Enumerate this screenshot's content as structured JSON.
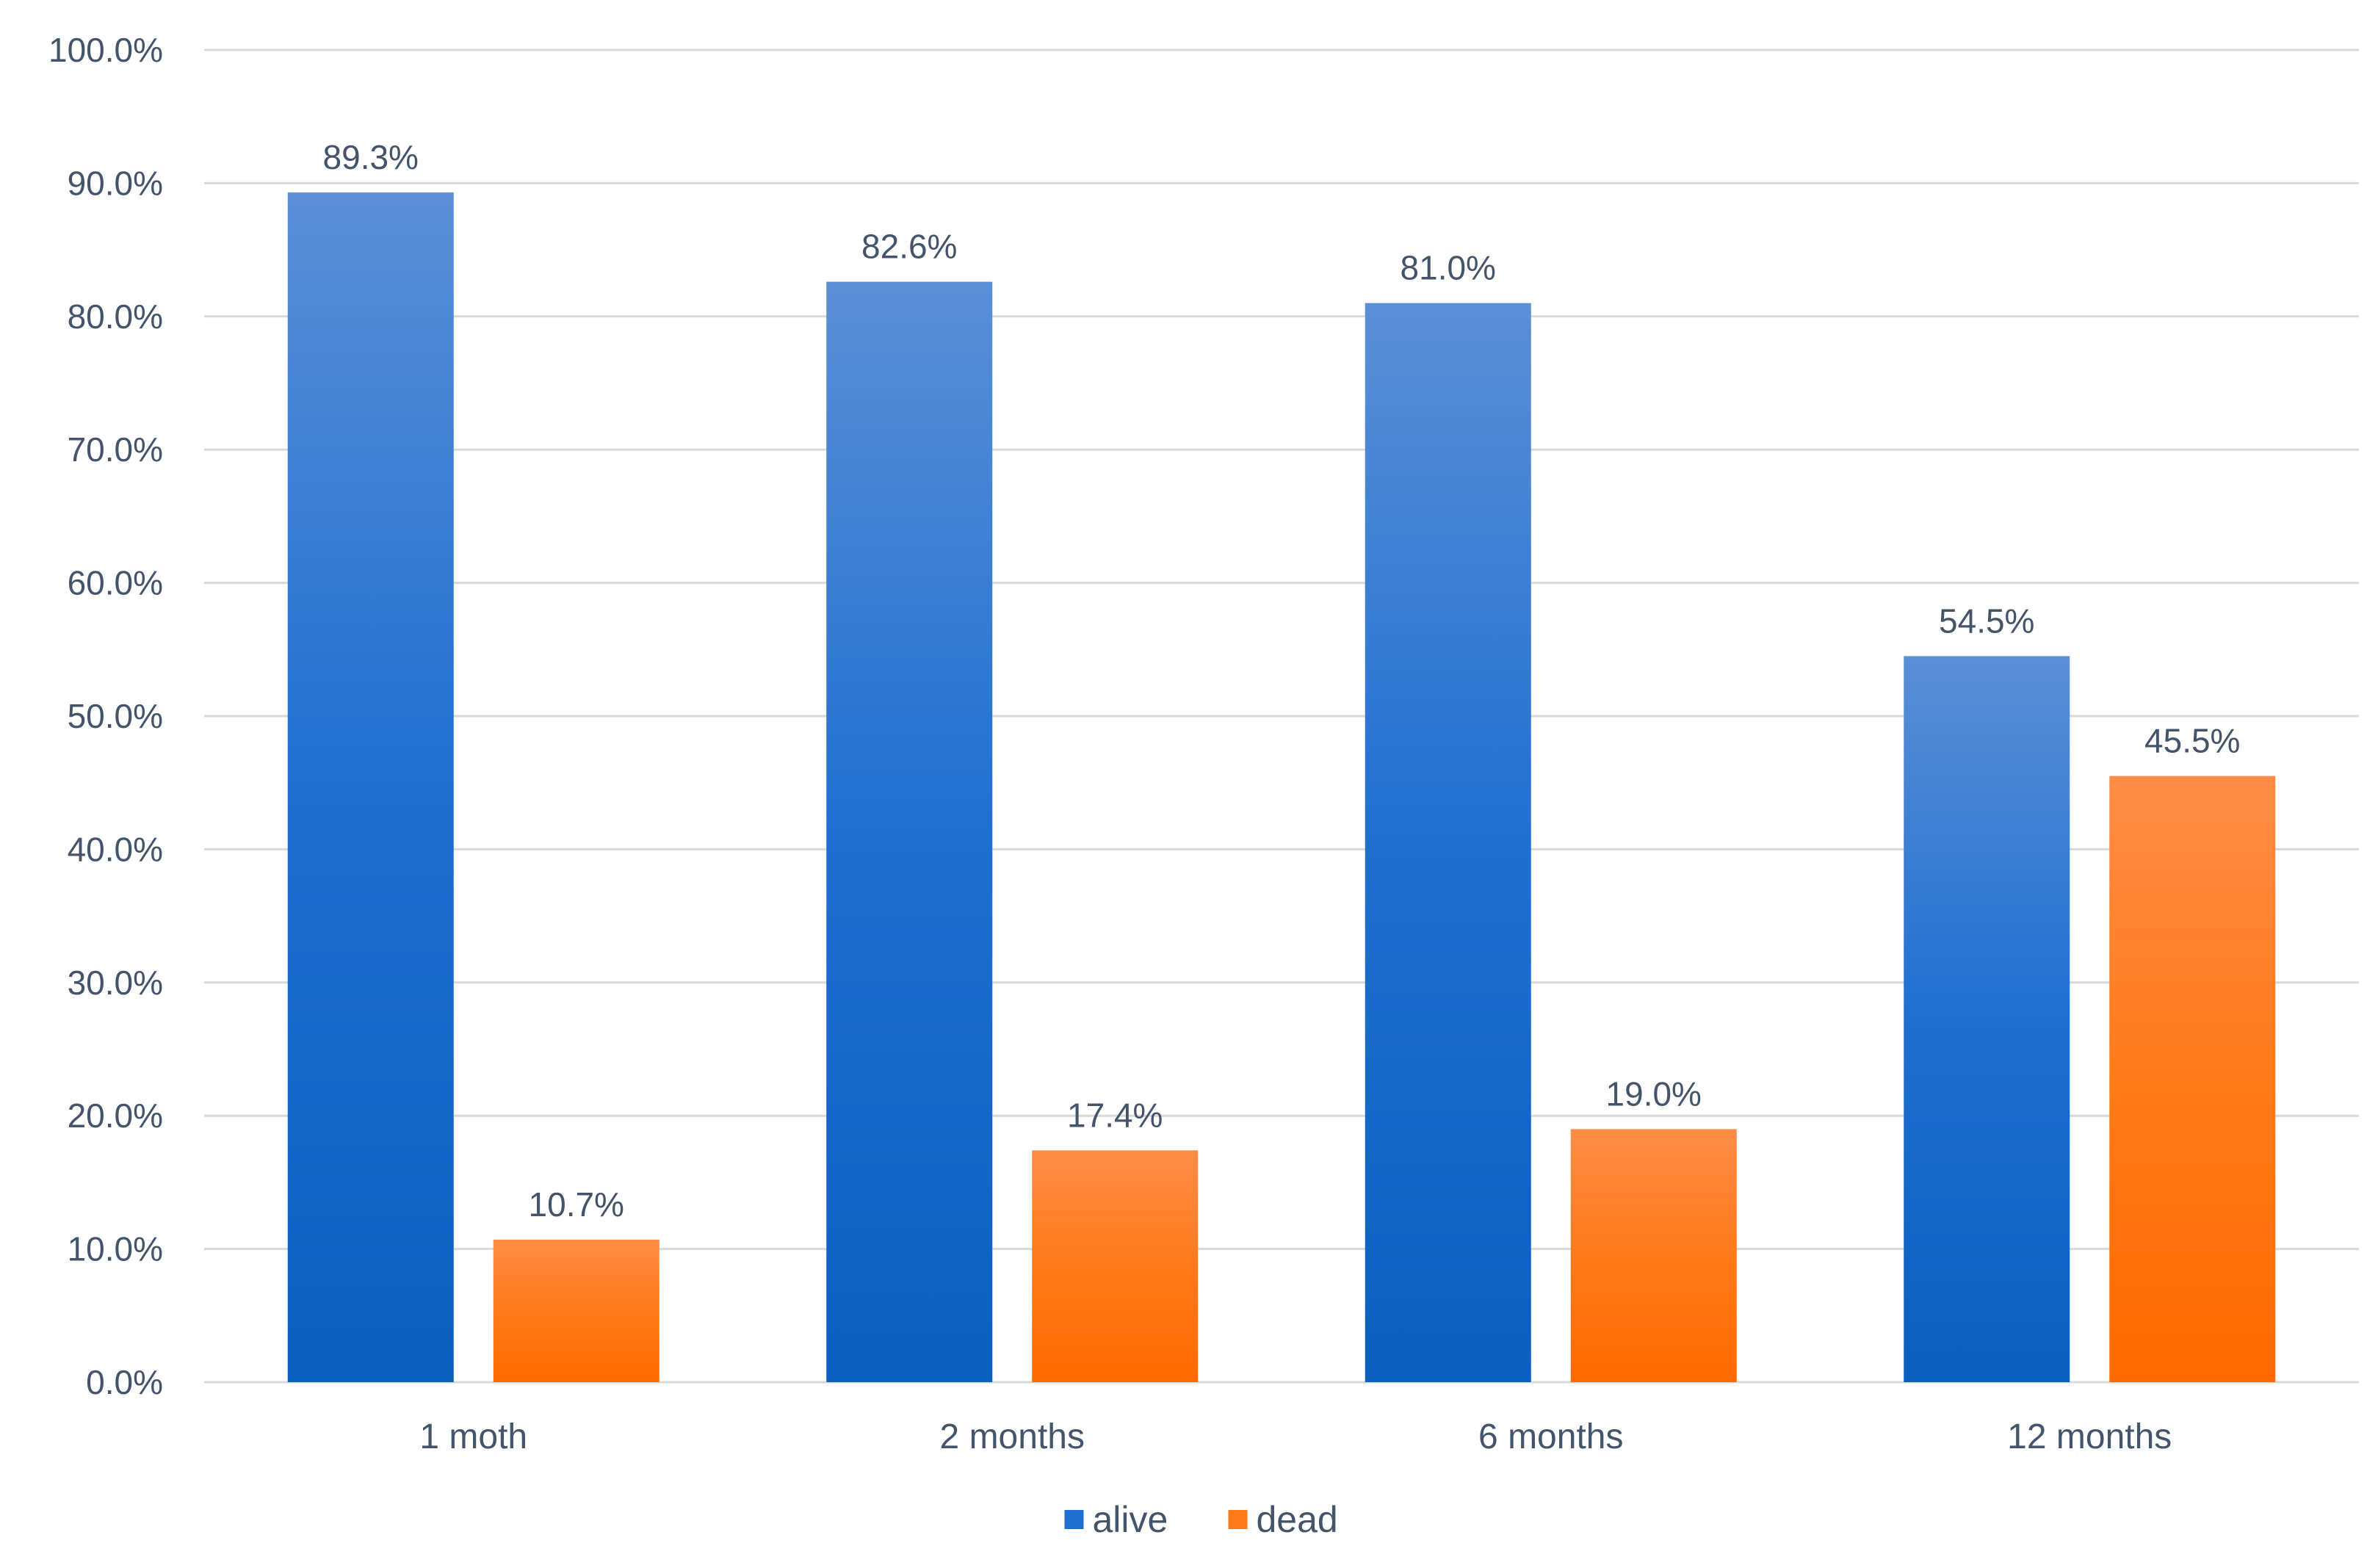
{
  "chart_data": {
    "type": "bar",
    "title": "",
    "xlabel": "",
    "ylabel": "",
    "categories": [
      "1 moth",
      "2 months",
      "6 months",
      "12 months"
    ],
    "series": [
      {
        "name": "alive",
        "values": [
          89.3,
          82.6,
          81.0,
          54.5
        ],
        "labels": [
          "89.3%",
          "82.6%",
          "81.0%",
          "54.5%"
        ],
        "color": "#1f6fd1",
        "color_light": "#5b8fd6",
        "color_dark": "#0a5fbf"
      },
      {
        "name": "dead",
        "values": [
          10.7,
          17.4,
          19.0,
          45.5
        ],
        "labels": [
          "10.7%",
          "17.4%",
          "19.0%",
          "45.5%"
        ],
        "color": "#ff7a1a",
        "color_light": "#ff8c47",
        "color_dark": "#ff6a00"
      }
    ],
    "y_ticks": [
      0,
      10,
      20,
      30,
      40,
      50,
      60,
      70,
      80,
      90,
      100
    ],
    "y_tick_labels": [
      "0.0%",
      "10.0%",
      "20.0%",
      "30.0%",
      "40.0%",
      "50.0%",
      "60.0%",
      "70.0%",
      "80.0%",
      "90.0%",
      "100.0%"
    ],
    "ylim": [
      0,
      100
    ],
    "grid": true,
    "legend_position": "bottom-center"
  }
}
